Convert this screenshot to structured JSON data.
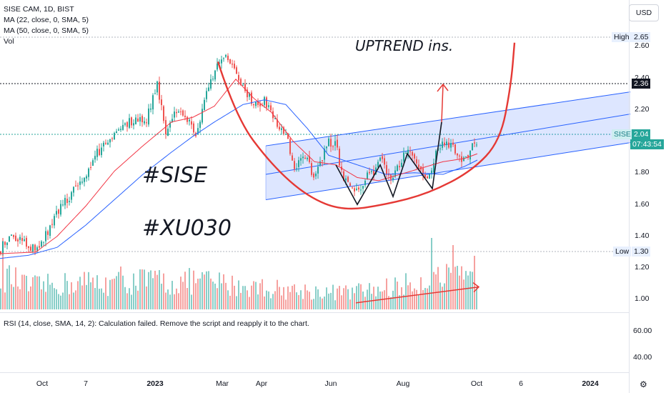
{
  "chart_data": {
    "type": "candlestick",
    "symbol": "SISE CAM, 1D, BIST",
    "currency_button": "USD",
    "indicators": [
      "MA (22, close, 0, SMA, 5)",
      "MA (50, close, 0, SMA, 5)",
      "Vol"
    ],
    "rsi_text": "RSI (14, close, SMA, 14, 2): Calculation failed. Remove the script and reapply it to the chart.",
    "annotations": {
      "uptrend": "UPTREND ins.",
      "tag1": "#SISE",
      "tag2": "#XU030"
    },
    "price_axis": {
      "ticks": [
        "2.60",
        "2.40",
        "2.20",
        "1.80",
        "1.60",
        "1.40",
        "1.20",
        "1.00"
      ],
      "range": [
        0.92,
        2.7
      ]
    },
    "rsi_axis": {
      "ticks": [
        "60.00",
        "40.00"
      ]
    },
    "x_axis_labels": [
      {
        "text": "Oct",
        "bold": false
      },
      {
        "text": "7",
        "bold": false
      },
      {
        "text": "2023",
        "bold": true
      },
      {
        "text": "Mar",
        "bold": false
      },
      {
        "text": "Apr",
        "bold": false
      },
      {
        "text": "Jun",
        "bold": false
      },
      {
        "text": "Aug",
        "bold": false
      },
      {
        "text": "Oct",
        "bold": false
      },
      {
        "text": "6",
        "bold": false
      },
      {
        "text": "2024",
        "bold": true
      }
    ],
    "markers": {
      "high": {
        "label": "High",
        "value": "2.65"
      },
      "low": {
        "label": "Low",
        "value": "1.30"
      },
      "level": {
        "value": "2.36"
      },
      "last": {
        "label": "SISE",
        "value": "2.04",
        "countdown": "07:43:54"
      }
    },
    "close_anchors": [
      [
        0,
        1.36
      ],
      [
        15,
        1.47
      ],
      [
        35,
        1.4
      ],
      [
        50,
        1.36
      ],
      [
        60,
        1.42
      ],
      [
        80,
        1.6
      ],
      [
        100,
        1.72
      ],
      [
        115,
        1.78
      ],
      [
        135,
        1.97
      ],
      [
        150,
        2.05
      ],
      [
        170,
        2.15
      ],
      [
        190,
        2.18
      ],
      [
        205,
        2.19
      ],
      [
        220,
        2.42
      ],
      [
        232,
        2.1
      ],
      [
        245,
        2.25
      ],
      [
        260,
        2.21
      ],
      [
        275,
        2.08
      ],
      [
        290,
        2.4
      ],
      [
        305,
        2.53
      ],
      [
        315,
        2.62
      ],
      [
        325,
        2.51
      ],
      [
        340,
        2.4
      ],
      [
        355,
        2.27
      ],
      [
        370,
        2.31
      ],
      [
        385,
        2.17
      ],
      [
        400,
        2.1
      ],
      [
        412,
        1.86
      ],
      [
        425,
        1.96
      ],
      [
        440,
        1.83
      ],
      [
        450,
        1.93
      ],
      [
        460,
        2.05
      ],
      [
        470,
        2.03
      ],
      [
        480,
        1.82
      ],
      [
        492,
        1.74
      ],
      [
        500,
        1.73
      ],
      [
        512,
        1.82
      ],
      [
        525,
        1.87
      ],
      [
        533,
        1.95
      ],
      [
        545,
        1.8
      ],
      [
        560,
        1.9
      ],
      [
        570,
        2.0
      ],
      [
        585,
        1.9
      ],
      [
        600,
        1.82
      ],
      [
        612,
        1.99
      ],
      [
        625,
        2.05
      ],
      [
        640,
        1.98
      ],
      [
        650,
        1.91
      ],
      [
        660,
        2.02
      ],
      [
        668,
        2.04
      ]
    ],
    "ma22_anchors": [
      [
        0,
        1.34
      ],
      [
        50,
        1.35
      ],
      [
        80,
        1.45
      ],
      [
        120,
        1.64
      ],
      [
        160,
        1.86
      ],
      [
        200,
        2.02
      ],
      [
        240,
        2.17
      ],
      [
        270,
        2.2
      ],
      [
        300,
        2.27
      ],
      [
        330,
        2.44
      ],
      [
        355,
        2.32
      ],
      [
        380,
        2.23
      ],
      [
        410,
        2.05
      ],
      [
        440,
        1.92
      ],
      [
        470,
        1.9
      ],
      [
        500,
        1.82
      ],
      [
        530,
        1.8
      ],
      [
        560,
        1.84
      ],
      [
        590,
        1.88
      ],
      [
        620,
        1.92
      ],
      [
        650,
        1.94
      ],
      [
        668,
        1.97
      ]
    ],
    "ma50_anchors": [
      [
        0,
        1.31
      ],
      [
        40,
        1.33
      ],
      [
        80,
        1.38
      ],
      [
        120,
        1.52
      ],
      [
        160,
        1.68
      ],
      [
        200,
        1.84
      ],
      [
        240,
        1.98
      ],
      [
        270,
        2.08
      ],
      [
        300,
        2.17
      ],
      [
        340,
        2.28
      ],
      [
        370,
        2.31
      ],
      [
        400,
        2.28
      ],
      [
        430,
        2.13
      ],
      [
        460,
        1.96
      ],
      [
        500,
        1.9
      ],
      [
        540,
        1.84
      ],
      [
        580,
        1.85
      ],
      [
        620,
        1.84
      ],
      [
        650,
        1.89
      ],
      [
        668,
        1.93
      ]
    ],
    "volume_anchors": [
      [
        0,
        0.55
      ],
      [
        40,
        0.35
      ],
      [
        80,
        0.38
      ],
      [
        120,
        0.42
      ],
      [
        160,
        0.4
      ],
      [
        200,
        0.45
      ],
      [
        240,
        0.4
      ],
      [
        280,
        0.45
      ],
      [
        320,
        0.38
      ],
      [
        360,
        0.35
      ],
      [
        400,
        0.3
      ],
      [
        440,
        0.28
      ],
      [
        480,
        0.26
      ],
      [
        520,
        0.3
      ],
      [
        560,
        0.36
      ],
      [
        600,
        0.45
      ],
      [
        630,
        0.48
      ],
      [
        668,
        0.42
      ]
    ],
    "volume_spikes": [
      [
        5,
        1.0
      ],
      [
        170,
        0.6
      ],
      [
        222,
        0.55
      ],
      [
        605,
        1.0
      ],
      [
        635,
        0.9
      ],
      [
        665,
        0.75
      ]
    ],
    "drawings": {
      "channel_top": [
        [
          372,
          2.02
        ],
        [
          882,
          2.36
        ]
      ],
      "channel_mid": [
        [
          372,
          1.84
        ],
        [
          882,
          2.22
        ]
      ],
      "channel_bottom": [
        [
          372,
          1.68
        ],
        [
          882,
          2.04
        ]
      ],
      "w_pattern": [
        [
          470,
          1.9
        ],
        [
          500,
          1.65
        ],
        [
          532,
          1.9
        ],
        [
          550,
          1.7
        ],
        [
          570,
          1.97
        ],
        [
          605,
          1.75
        ],
        [
          618,
          2.17
        ]
      ],
      "cup_curve": [
        [
          305,
          2.55
        ],
        [
          330,
          2.2
        ],
        [
          380,
          1.9
        ],
        [
          430,
          1.7
        ],
        [
          480,
          1.61
        ],
        [
          540,
          1.65
        ],
        [
          600,
          1.72
        ],
        [
          660,
          1.86
        ],
        [
          700,
          2.05
        ],
        [
          715,
          2.4
        ],
        [
          720,
          2.67
        ]
      ],
      "volume_trend": [
        [
          498,
          1.03
        ],
        [
          670,
          1.13
        ]
      ]
    }
  }
}
